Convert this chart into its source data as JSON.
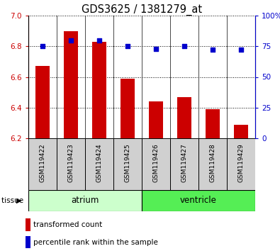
{
  "title": "GDS3625 / 1381279_at",
  "samples": [
    "GSM119422",
    "GSM119423",
    "GSM119424",
    "GSM119425",
    "GSM119426",
    "GSM119427",
    "GSM119428",
    "GSM119429"
  ],
  "red_values": [
    6.67,
    6.9,
    6.83,
    6.59,
    6.44,
    6.47,
    6.39,
    6.29
  ],
  "blue_values": [
    75,
    80,
    80,
    75,
    73,
    75,
    72,
    72
  ],
  "ylim_left": [
    6.2,
    7.0
  ],
  "ylim_right": [
    0,
    100
  ],
  "yticks_left": [
    6.2,
    6.4,
    6.6,
    6.8,
    7.0
  ],
  "yticks_right": [
    0,
    25,
    50,
    75,
    100
  ],
  "groups": [
    {
      "label": "atrium",
      "samples": [
        0,
        1,
        2,
        3
      ],
      "color": "#ccffcc"
    },
    {
      "label": "ventricle",
      "samples": [
        4,
        5,
        6,
        7
      ],
      "color": "#55ee55"
    }
  ],
  "bar_color": "#cc0000",
  "dot_color": "#0000cc",
  "bg_color": "#ffffff",
  "tick_label_color_left": "#cc0000",
  "tick_label_color_right": "#0000cc",
  "bar_width": 0.5,
  "bar_bottom": 6.2,
  "sample_box_color": "#d0d0d0",
  "legend_items": [
    {
      "color": "#cc0000",
      "label": "transformed count"
    },
    {
      "color": "#0000cc",
      "label": "percentile rank within the sample"
    }
  ]
}
